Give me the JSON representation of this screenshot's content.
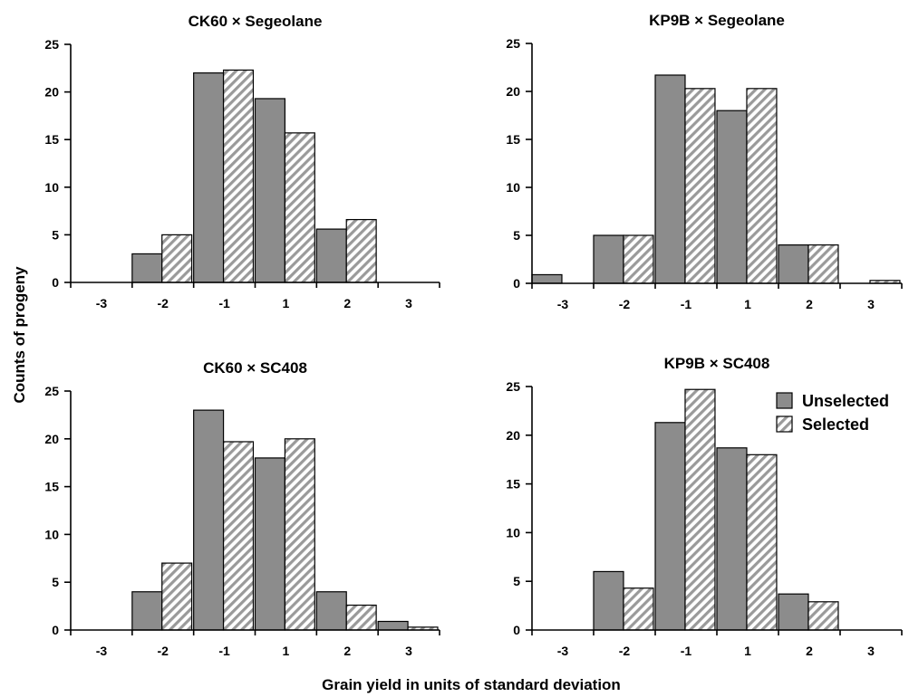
{
  "figure": {
    "xlabel": "Grain yield in units of standard deviation",
    "ylabel": "Counts of progeny",
    "legend": {
      "position": "top-right of bottom-right panel",
      "items": [
        "Unselected",
        "Selected"
      ]
    }
  },
  "colors": {
    "unselected_fill": "#8c8c8c",
    "selected_hatch": "#9a9a9a",
    "axis": "#000000"
  },
  "chart_data": [
    {
      "type": "bar",
      "title": "CK60 × Segeolane",
      "categories": [
        "-3",
        "-2",
        "-1",
        "1",
        "2",
        "3"
      ],
      "series": [
        {
          "name": "Unselected",
          "values": [
            0,
            3,
            22,
            19.3,
            5.6,
            0
          ]
        },
        {
          "name": "Selected",
          "values": [
            0,
            5,
            22.3,
            15.7,
            6.6,
            0
          ]
        }
      ],
      "ylim": [
        0,
        25
      ],
      "yticks": [
        0,
        5,
        10,
        15,
        20,
        25
      ],
      "grid": false
    },
    {
      "type": "bar",
      "title": "KP9B × Segeolane",
      "categories": [
        "-3",
        "-2",
        "-1",
        "1",
        "2",
        "3"
      ],
      "series": [
        {
          "name": "Unselected",
          "values": [
            0.9,
            5,
            21.7,
            18,
            4,
            0
          ]
        },
        {
          "name": "Selected",
          "values": [
            0,
            5,
            20.3,
            20.3,
            4,
            0.3
          ]
        }
      ],
      "ylim": [
        0,
        25
      ],
      "yticks": [
        0,
        5,
        10,
        15,
        20,
        25
      ],
      "grid": false
    },
    {
      "type": "bar",
      "title": "CK60 × SC408",
      "categories": [
        "-3",
        "-2",
        "-1",
        "1",
        "2",
        "3"
      ],
      "series": [
        {
          "name": "Unselected",
          "values": [
            0,
            4,
            23,
            18,
            4,
            0.9
          ]
        },
        {
          "name": "Selected",
          "values": [
            0,
            7,
            19.7,
            20,
            2.6,
            0.3
          ]
        }
      ],
      "ylim": [
        0,
        25
      ],
      "yticks": [
        0,
        5,
        10,
        15,
        20,
        25
      ],
      "grid": false
    },
    {
      "type": "bar",
      "title": "KP9B × SC408",
      "categories": [
        "-3",
        "-2",
        "-1",
        "1",
        "2",
        "3"
      ],
      "series": [
        {
          "name": "Unselected",
          "values": [
            0,
            6,
            21.3,
            18.7,
            3.7,
            0
          ]
        },
        {
          "name": "Selected",
          "values": [
            0,
            4.3,
            24.7,
            18,
            2.9,
            0
          ]
        }
      ],
      "ylim": [
        0,
        25
      ],
      "yticks": [
        0,
        5,
        10,
        15,
        20,
        25
      ],
      "grid": false
    }
  ]
}
